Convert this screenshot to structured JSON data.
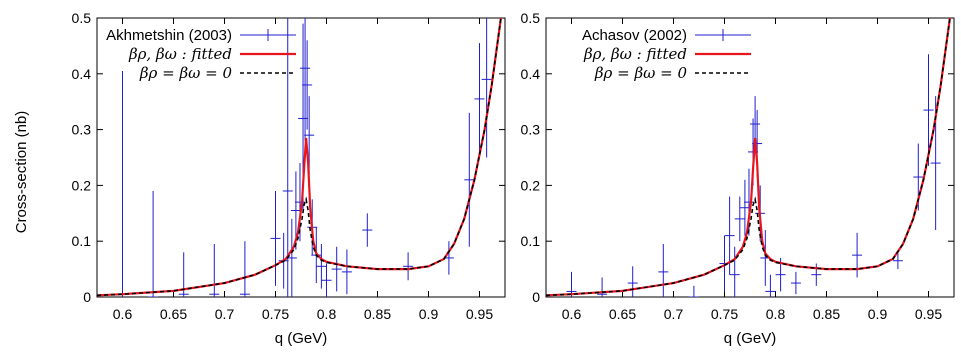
{
  "figure": {
    "ylabel": "Cross-section (nb)",
    "xlabel": "q (GeV)"
  },
  "chart_data": [
    {
      "type": "line",
      "xlabel": "q (GeV)",
      "ylabel": "Cross-section (nb)",
      "xlim": [
        0.575,
        0.975
      ],
      "ylim": [
        0,
        0.5
      ],
      "x_ticks": [
        "0.6",
        "0.65",
        "0.7",
        "0.75",
        "0.8",
        "0.85",
        "0.9",
        "0.95"
      ],
      "y_ticks": [
        "0",
        "0.1",
        "0.2",
        "0.3",
        "0.4",
        "0.5"
      ],
      "legend_position": "top-right",
      "legend": [
        "Akhmetshin (2003)",
        "βρ, βω : fitted",
        "βρ = βω = 0"
      ],
      "series": [
        {
          "name": "Akhmetshin (2003)",
          "kind": "errorbar",
          "color": "#1f1fcf",
          "points": [
            {
              "x": 0.6,
              "y": 0.005,
              "yerr": 0.4
            },
            {
              "x": 0.63,
              "y": 0.0,
              "yerr": 0.19
            },
            {
              "x": 0.66,
              "y": 0.005,
              "yerr": 0.075
            },
            {
              "x": 0.69,
              "y": 0.005,
              "yerr": 0.09
            },
            {
              "x": 0.72,
              "y": 0.005,
              "yerr": 0.095
            },
            {
              "x": 0.75,
              "y": 0.105,
              "yerr": 0.085
            },
            {
              "x": 0.758,
              "y": 0.065,
              "yerr": 0.05
            },
            {
              "x": 0.762,
              "y": 0.19,
              "yerr": 0.4
            },
            {
              "x": 0.766,
              "y": 0.07,
              "yerr": 0.07
            },
            {
              "x": 0.77,
              "y": 0.155,
              "yerr": 0.07
            },
            {
              "x": 0.774,
              "y": 0.17,
              "yerr": 0.07
            },
            {
              "x": 0.777,
              "y": 0.32,
              "yerr": 0.17
            },
            {
              "x": 0.779,
              "y": 0.41,
              "yerr": 0.13
            },
            {
              "x": 0.781,
              "y": 0.38,
              "yerr": 0.08
            },
            {
              "x": 0.783,
              "y": 0.29,
              "yerr": 0.07
            },
            {
              "x": 0.786,
              "y": 0.125,
              "yerr": 0.05
            },
            {
              "x": 0.79,
              "y": 0.075,
              "yerr": 0.05
            },
            {
              "x": 0.795,
              "y": 0.055,
              "yerr": 0.04
            },
            {
              "x": 0.8,
              "y": 0.03,
              "yerr": 0.03
            },
            {
              "x": 0.81,
              "y": 0.05,
              "yerr": 0.04
            },
            {
              "x": 0.82,
              "y": 0.045,
              "yerr": 0.04
            },
            {
              "x": 0.84,
              "y": 0.12,
              "yerr": 0.03
            },
            {
              "x": 0.88,
              "y": 0.055,
              "yerr": 0.025
            },
            {
              "x": 0.92,
              "y": 0.07,
              "yerr": 0.03
            },
            {
              "x": 0.94,
              "y": 0.21,
              "yerr": 0.12
            },
            {
              "x": 0.95,
              "y": 0.355,
              "yerr": 0.1
            },
            {
              "x": 0.957,
              "y": 0.39,
              "yerr": 0.14
            }
          ]
        },
        {
          "name": "βρ, βω : fitted",
          "kind": "line",
          "color": "#e8141e",
          "points": [
            [
              0.575,
              0.003
            ],
            [
              0.6,
              0.005
            ],
            [
              0.65,
              0.011
            ],
            [
              0.7,
              0.025
            ],
            [
              0.73,
              0.04
            ],
            [
              0.75,
              0.057
            ],
            [
              0.76,
              0.068
            ],
            [
              0.768,
              0.09
            ],
            [
              0.772,
              0.115
            ],
            [
              0.776,
              0.17
            ],
            [
              0.778,
              0.23
            ],
            [
              0.78,
              0.285
            ],
            [
              0.782,
              0.24
            ],
            [
              0.784,
              0.16
            ],
            [
              0.787,
              0.1
            ],
            [
              0.79,
              0.078
            ],
            [
              0.795,
              0.068
            ],
            [
              0.8,
              0.063
            ],
            [
              0.82,
              0.055
            ],
            [
              0.85,
              0.05
            ],
            [
              0.88,
              0.05
            ],
            [
              0.9,
              0.055
            ],
            [
              0.915,
              0.068
            ],
            [
              0.925,
              0.095
            ],
            [
              0.935,
              0.14
            ],
            [
              0.945,
              0.21
            ],
            [
              0.955,
              0.3
            ],
            [
              0.962,
              0.38
            ],
            [
              0.968,
              0.46
            ],
            [
              0.971,
              0.5
            ]
          ]
        },
        {
          "name": "βρ = βω = 0",
          "kind": "dashed",
          "color": "#000000",
          "points": [
            [
              0.575,
              0.003
            ],
            [
              0.6,
              0.005
            ],
            [
              0.65,
              0.011
            ],
            [
              0.7,
              0.025
            ],
            [
              0.73,
              0.04
            ],
            [
              0.75,
              0.057
            ],
            [
              0.76,
              0.066
            ],
            [
              0.768,
              0.085
            ],
            [
              0.772,
              0.105
            ],
            [
              0.776,
              0.14
            ],
            [
              0.778,
              0.165
            ],
            [
              0.78,
              0.175
            ],
            [
              0.782,
              0.155
            ],
            [
              0.784,
              0.12
            ],
            [
              0.787,
              0.09
            ],
            [
              0.79,
              0.075
            ],
            [
              0.795,
              0.066
            ],
            [
              0.8,
              0.062
            ],
            [
              0.82,
              0.055
            ],
            [
              0.85,
              0.05
            ],
            [
              0.88,
              0.05
            ],
            [
              0.9,
              0.055
            ],
            [
              0.915,
              0.068
            ],
            [
              0.925,
              0.095
            ],
            [
              0.935,
              0.14
            ],
            [
              0.945,
              0.21
            ],
            [
              0.955,
              0.3
            ],
            [
              0.962,
              0.38
            ],
            [
              0.968,
              0.46
            ],
            [
              0.971,
              0.5
            ]
          ]
        }
      ]
    },
    {
      "type": "line",
      "xlabel": "q (GeV)",
      "ylabel": "",
      "xlim": [
        0.575,
        0.975
      ],
      "ylim": [
        0,
        0.5
      ],
      "x_ticks": [
        "0.6",
        "0.65",
        "0.7",
        "0.75",
        "0.8",
        "0.85",
        "0.9",
        "0.95"
      ],
      "y_ticks": [
        "0",
        "0.1",
        "0.2",
        "0.3",
        "0.4",
        "0.5"
      ],
      "legend_position": "top-right",
      "legend": [
        "Achasov (2002)",
        "βρ, βω : fitted",
        "βρ = βω = 0"
      ],
      "series": [
        {
          "name": "Achasov (2002)",
          "kind": "errorbar",
          "color": "#1f1fcf",
          "points": [
            {
              "x": 0.6,
              "y": 0.01,
              "yerr": 0.035
            },
            {
              "x": 0.63,
              "y": 0.005,
              "yerr": 0.03
            },
            {
              "x": 0.66,
              "y": 0.025,
              "yerr": 0.03
            },
            {
              "x": 0.69,
              "y": 0.045,
              "yerr": 0.05
            },
            {
              "x": 0.72,
              "y": 0.0,
              "yerr": 0.02
            },
            {
              "x": 0.75,
              "y": 0.06,
              "yerr": 0.05
            },
            {
              "x": 0.755,
              "y": 0.11,
              "yerr": 0.07
            },
            {
              "x": 0.76,
              "y": 0.04,
              "yerr": 0.05
            },
            {
              "x": 0.765,
              "y": 0.14,
              "yerr": 0.04
            },
            {
              "x": 0.77,
              "y": 0.16,
              "yerr": 0.05
            },
            {
              "x": 0.774,
              "y": 0.17,
              "yerr": 0.06
            },
            {
              "x": 0.778,
              "y": 0.26,
              "yerr": 0.06
            },
            {
              "x": 0.78,
              "y": 0.31,
              "yerr": 0.05
            },
            {
              "x": 0.782,
              "y": 0.275,
              "yerr": 0.06
            },
            {
              "x": 0.785,
              "y": 0.15,
              "yerr": 0.05
            },
            {
              "x": 0.79,
              "y": 0.07,
              "yerr": 0.05
            },
            {
              "x": 0.795,
              "y": 0.01,
              "yerr": 0.03
            },
            {
              "x": 0.805,
              "y": 0.04,
              "yerr": 0.03
            },
            {
              "x": 0.82,
              "y": 0.025,
              "yerr": 0.02
            },
            {
              "x": 0.84,
              "y": 0.04,
              "yerr": 0.02
            },
            {
              "x": 0.88,
              "y": 0.075,
              "yerr": 0.04
            },
            {
              "x": 0.92,
              "y": 0.065,
              "yerr": 0.015
            },
            {
              "x": 0.94,
              "y": 0.215,
              "yerr": 0.06
            },
            {
              "x": 0.95,
              "y": 0.335,
              "yerr": 0.1
            },
            {
              "x": 0.957,
              "y": 0.24,
              "yerr": 0.12
            }
          ]
        },
        {
          "name": "βρ, βω : fitted",
          "kind": "line",
          "color": "#e8141e",
          "points": [
            [
              0.575,
              0.003
            ],
            [
              0.6,
              0.005
            ],
            [
              0.65,
              0.011
            ],
            [
              0.7,
              0.025
            ],
            [
              0.73,
              0.04
            ],
            [
              0.75,
              0.057
            ],
            [
              0.76,
              0.068
            ],
            [
              0.768,
              0.09
            ],
            [
              0.772,
              0.115
            ],
            [
              0.776,
              0.17
            ],
            [
              0.778,
              0.23
            ],
            [
              0.78,
              0.285
            ],
            [
              0.782,
              0.24
            ],
            [
              0.784,
              0.16
            ],
            [
              0.787,
              0.1
            ],
            [
              0.79,
              0.078
            ],
            [
              0.795,
              0.068
            ],
            [
              0.8,
              0.063
            ],
            [
              0.82,
              0.055
            ],
            [
              0.85,
              0.05
            ],
            [
              0.88,
              0.05
            ],
            [
              0.9,
              0.055
            ],
            [
              0.915,
              0.068
            ],
            [
              0.925,
              0.095
            ],
            [
              0.935,
              0.14
            ],
            [
              0.945,
              0.21
            ],
            [
              0.955,
              0.3
            ],
            [
              0.962,
              0.38
            ],
            [
              0.968,
              0.46
            ],
            [
              0.971,
              0.5
            ]
          ]
        },
        {
          "name": "βρ = βω = 0",
          "kind": "dashed",
          "color": "#000000",
          "points": [
            [
              0.575,
              0.003
            ],
            [
              0.6,
              0.005
            ],
            [
              0.65,
              0.011
            ],
            [
              0.7,
              0.025
            ],
            [
              0.73,
              0.04
            ],
            [
              0.75,
              0.057
            ],
            [
              0.76,
              0.066
            ],
            [
              0.768,
              0.085
            ],
            [
              0.772,
              0.105
            ],
            [
              0.776,
              0.14
            ],
            [
              0.778,
              0.165
            ],
            [
              0.78,
              0.175
            ],
            [
              0.782,
              0.155
            ],
            [
              0.784,
              0.12
            ],
            [
              0.787,
              0.09
            ],
            [
              0.79,
              0.075
            ],
            [
              0.795,
              0.066
            ],
            [
              0.8,
              0.062
            ],
            [
              0.82,
              0.055
            ],
            [
              0.85,
              0.05
            ],
            [
              0.88,
              0.05
            ],
            [
              0.9,
              0.055
            ],
            [
              0.915,
              0.068
            ],
            [
              0.925,
              0.095
            ],
            [
              0.935,
              0.14
            ],
            [
              0.945,
              0.21
            ],
            [
              0.955,
              0.3
            ],
            [
              0.962,
              0.38
            ],
            [
              0.968,
              0.46
            ],
            [
              0.971,
              0.5
            ]
          ]
        }
      ]
    }
  ]
}
